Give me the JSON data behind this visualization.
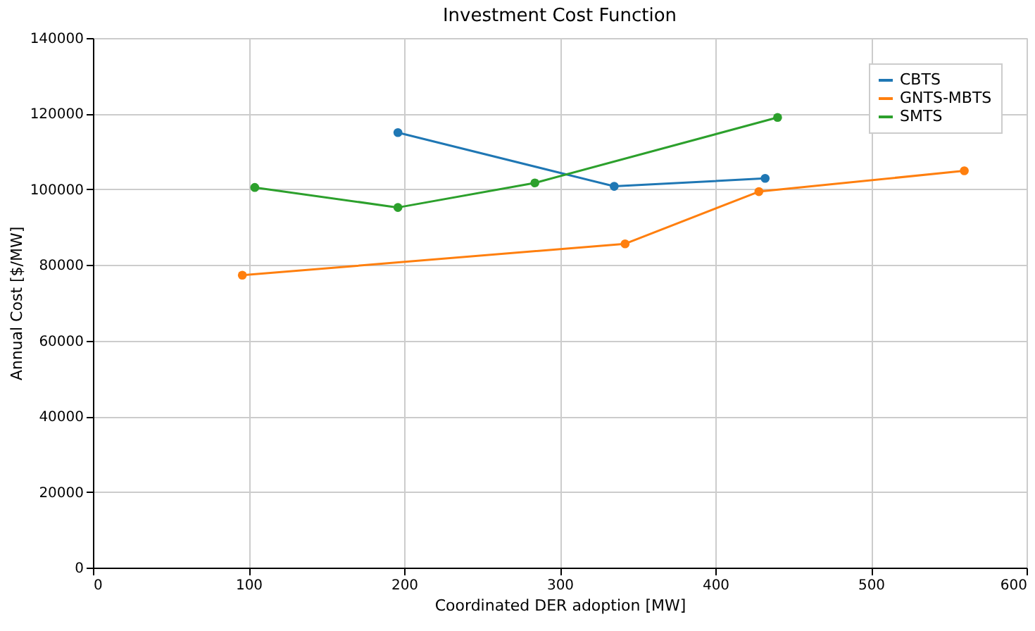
{
  "chart_data": {
    "type": "line",
    "title": "Investment Cost Function",
    "xlabel": "Coordinated DER adoption [MW]",
    "ylabel": "Annual Cost [$/MW]",
    "series": [
      {
        "name": "CBTS",
        "color": "#1f77b4",
        "x": [
          196,
          335,
          432
        ],
        "values": [
          115000,
          100800,
          102900
        ]
      },
      {
        "name": "GNTS-MBTS",
        "color": "#ff7f0e",
        "x": [
          96,
          342,
          428,
          560
        ],
        "values": [
          77300,
          85600,
          99400,
          104900
        ]
      },
      {
        "name": "SMTS",
        "color": "#2ca02c",
        "x": [
          104,
          196,
          284,
          440
        ],
        "values": [
          100500,
          95200,
          101700,
          119000
        ]
      }
    ],
    "xlim": [
      0,
      600
    ],
    "xticks": [
      0,
      100,
      200,
      300,
      400,
      500,
      600
    ],
    "ylim": [
      0,
      140000
    ],
    "yticks": [
      0,
      20000,
      40000,
      60000,
      80000,
      100000,
      120000,
      140000
    ],
    "grid": true,
    "legend": "top right",
    "marker": "circle",
    "line_style": "solid"
  }
}
